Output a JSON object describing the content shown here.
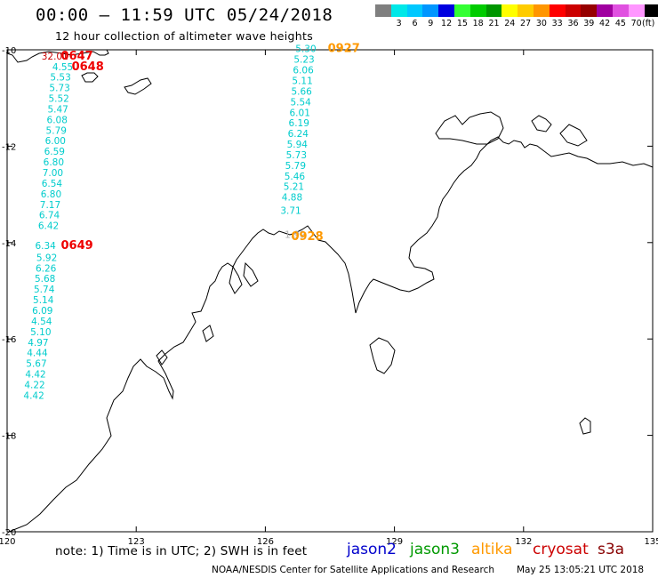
{
  "title": "00:00 – 11:59 UTC 05/24/2018",
  "subtitle": "12 hour collection of altimeter wave heights",
  "legend": {
    "unit": "(ft)",
    "swatches": [
      {
        "label": "",
        "color": "#7f7f7f"
      },
      {
        "label": "3",
        "color": "#00e8e8"
      },
      {
        "label": "6",
        "color": "#00c8ff"
      },
      {
        "label": "9",
        "color": "#0096ff"
      },
      {
        "label": "12",
        "color": "#0000e0"
      },
      {
        "label": "15",
        "color": "#33ff33"
      },
      {
        "label": "18",
        "color": "#00cc00"
      },
      {
        "label": "21",
        "color": "#009600"
      },
      {
        "label": "24",
        "color": "#ffff00"
      },
      {
        "label": "27",
        "color": "#ffcc00"
      },
      {
        "label": "30",
        "color": "#ff9600"
      },
      {
        "label": "33",
        "color": "#ff0000"
      },
      {
        "label": "36",
        "color": "#cc0000"
      },
      {
        "label": "39",
        "color": "#960000"
      },
      {
        "label": "42",
        "color": "#a000a0"
      },
      {
        "label": "45",
        "color": "#e050e0"
      },
      {
        "label": "70",
        "color": "#ff96ff"
      },
      {
        "label": "",
        "color": "#000000"
      }
    ]
  },
  "axes": {
    "lon_ticks": [
      "120",
      "123",
      "126",
      "129",
      "132",
      "135"
    ],
    "lat_ticks": [
      "-10",
      "-12",
      "-14",
      "-16",
      "-18",
      "-20"
    ],
    "lon_range": [
      120,
      135
    ],
    "lat_range": [
      -20,
      -10
    ]
  },
  "tracks": [
    {
      "satellite": "cryosat",
      "time_labels": [
        {
          "text": "0647",
          "lon": 121.25,
          "lat": -10.2
        },
        {
          "text": "0648",
          "lon": 121.5,
          "lat": -10.42
        },
        {
          "text": "0649",
          "lon": 121.25,
          "lat": -14.13
        }
      ],
      "values": [
        {
          "text": "32.01",
          "lon": 120.8,
          "lat": -10.2,
          "color": "#cc0000"
        },
        {
          "text": "4.55",
          "lon": 121.05,
          "lat": -10.42
        },
        {
          "text": "5.53",
          "lon": 121.0,
          "lat": -10.64
        },
        {
          "text": "5.73",
          "lon": 120.98,
          "lat": -10.86
        },
        {
          "text": "5.52",
          "lon": 120.96,
          "lat": -11.08
        },
        {
          "text": "5.47",
          "lon": 120.94,
          "lat": -11.3
        },
        {
          "text": "6.08",
          "lon": 120.92,
          "lat": -11.52
        },
        {
          "text": "5.79",
          "lon": 120.9,
          "lat": -11.74
        },
        {
          "text": "6.00",
          "lon": 120.88,
          "lat": -11.96
        },
        {
          "text": "6.59",
          "lon": 120.86,
          "lat": -12.18
        },
        {
          "text": "6.80",
          "lon": 120.84,
          "lat": -12.4
        },
        {
          "text": "7.00",
          "lon": 120.82,
          "lat": -12.62
        },
        {
          "text": "6.54",
          "lon": 120.8,
          "lat": -12.84
        },
        {
          "text": "6.80",
          "lon": 120.78,
          "lat": -13.06
        },
        {
          "text": "7.17",
          "lon": 120.76,
          "lat": -13.28
        },
        {
          "text": "6.74",
          "lon": 120.74,
          "lat": -13.5
        },
        {
          "text": "6.42",
          "lon": 120.72,
          "lat": -13.72
        },
        {
          "text": "6.34",
          "lon": 120.65,
          "lat": -14.13
        },
        {
          "text": "5.92",
          "lon": 120.68,
          "lat": -14.38
        },
        {
          "text": "6.26",
          "lon": 120.66,
          "lat": -14.6
        },
        {
          "text": "5.68",
          "lon": 120.64,
          "lat": -14.82
        },
        {
          "text": "5.74",
          "lon": 120.62,
          "lat": -15.04
        },
        {
          "text": "5.14",
          "lon": 120.6,
          "lat": -15.26
        },
        {
          "text": "6.09",
          "lon": 120.58,
          "lat": -15.48
        },
        {
          "text": "4.54",
          "lon": 120.56,
          "lat": -15.7
        },
        {
          "text": "5.10",
          "lon": 120.54,
          "lat": -15.92
        },
        {
          "text": "4.97",
          "lon": 120.48,
          "lat": -16.14
        },
        {
          "text": "4.44",
          "lon": 120.46,
          "lat": -16.36
        },
        {
          "text": "5.67",
          "lon": 120.44,
          "lat": -16.58
        },
        {
          "text": "4.42",
          "lon": 120.42,
          "lat": -16.8
        },
        {
          "text": "4.22",
          "lon": 120.4,
          "lat": -17.02
        },
        {
          "text": "4.42",
          "lon": 120.38,
          "lat": -17.24
        }
      ]
    },
    {
      "satellite": "altika",
      "time_labels": [
        {
          "text": "0927",
          "lon": 127.45,
          "lat": -10.05
        },
        {
          "text": "0928",
          "lon": 126.6,
          "lat": -13.95
        }
      ],
      "values": [
        {
          "text": "5.30",
          "lon": 126.7,
          "lat": -10.05
        },
        {
          "text": "5.23",
          "lon": 126.66,
          "lat": -10.27
        },
        {
          "text": "6.06",
          "lon": 126.64,
          "lat": -10.49
        },
        {
          "text": "5.11",
          "lon": 126.62,
          "lat": -10.71
        },
        {
          "text": "5.66",
          "lon": 126.6,
          "lat": -10.93
        },
        {
          "text": "5.54",
          "lon": 126.58,
          "lat": -11.15
        },
        {
          "text": "6.01",
          "lon": 126.56,
          "lat": -11.37
        },
        {
          "text": "6.19",
          "lon": 126.54,
          "lat": -11.59
        },
        {
          "text": "6.24",
          "lon": 126.52,
          "lat": -11.81
        },
        {
          "text": "5.94",
          "lon": 126.5,
          "lat": -12.03
        },
        {
          "text": "5.73",
          "lon": 126.48,
          "lat": -12.25
        },
        {
          "text": "5.79",
          "lon": 126.46,
          "lat": -12.47
        },
        {
          "text": "5.46",
          "lon": 126.44,
          "lat": -12.69
        },
        {
          "text": "5.21",
          "lon": 126.42,
          "lat": -12.91
        },
        {
          "text": "4.88",
          "lon": 126.38,
          "lat": -13.13
        },
        {
          "text": "3.71",
          "lon": 126.35,
          "lat": -13.4
        },
        {
          "text": "1.99",
          "lon": 126.45,
          "lat": -13.9,
          "color": "#b0b0b0"
        }
      ]
    }
  ],
  "note": "note:  1) Time is in UTC;  2) SWH is in feet",
  "satellites": [
    {
      "name": "jason2",
      "color": "#0000cc"
    },
    {
      "name": "jason3",
      "color": "#009900"
    },
    {
      "name": "altika",
      "color": "#ff9900"
    },
    {
      "name": "cryosat",
      "color": "#cc0000"
    },
    {
      "name": "s3a",
      "color": "#880000"
    }
  ],
  "credit": "NOAA/NESDIS Center for Satellite Applications and Research",
  "credit_time": "May 25 13:05:21 UTC 2018",
  "colors": {
    "value_text": "#00cccc",
    "cryosat_time": "#ee0000",
    "altika_time": "#ff9900",
    "coast": "#000000"
  }
}
